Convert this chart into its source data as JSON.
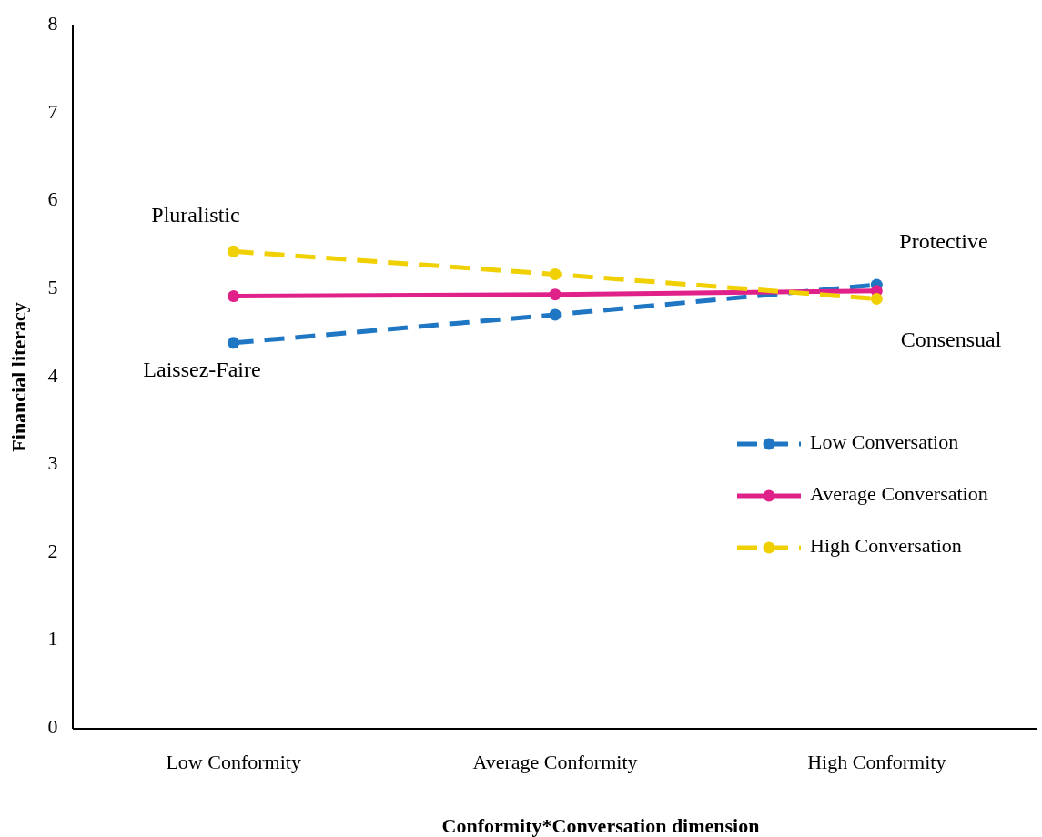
{
  "chart_data": {
    "type": "line",
    "xlabel": "Conformity*Conversation dimension",
    "ylabel": "Financial literacy",
    "categories": [
      "Low Conformity",
      "Average Conformity",
      "High Conformity"
    ],
    "series": [
      {
        "name": "Low Conversation",
        "color": "#1f77c4",
        "values": [
          4.39,
          4.71,
          5.05
        ],
        "line_style": "dashed"
      },
      {
        "name": "Average Conversation",
        "color": "#e0218a",
        "values": [
          4.92,
          4.94,
          4.98
        ],
        "line_style": "solid"
      },
      {
        "name": "High Conversation",
        "color": "#f0d000",
        "values": [
          5.43,
          5.17,
          4.89
        ],
        "line_style": "dashed"
      }
    ],
    "annotations": [
      "Pluralistic",
      "Laissez-Faire",
      "Protective",
      "Consensual"
    ],
    "ylim": [
      0,
      8
    ],
    "yticks": [
      0,
      1,
      2,
      3,
      4,
      5,
      6,
      7,
      8
    ],
    "grid": false,
    "legend": "right",
    "marker": "circle"
  }
}
